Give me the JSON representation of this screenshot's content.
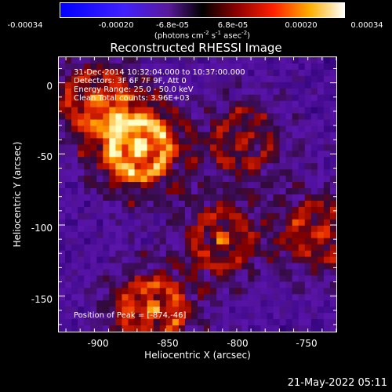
{
  "colorbar": {
    "ticks": [
      "-0.00034",
      "-0.00020",
      "-6.8e-05",
      "6.8e-05",
      "0.00020",
      "0.00034"
    ],
    "units_prefix": "(photons cm",
    "units_exp1": "-2",
    "units_mid1": " s",
    "units_exp2": "-1",
    "units_mid2": " asec",
    "units_exp3": "-2",
    "units_suffix": ")",
    "range": [
      -0.00034,
      0.00034
    ]
  },
  "title": "Reconstructed RHESSI Image",
  "info": {
    "time": "31-Dec-2014 10:32:04.000 to 10:37:00.000",
    "detectors": "Detectors: 3F 6F 7F 9F, Att 0",
    "energy": "Energy Range: 25.0 - 50.0 keV",
    "method": "Clean    Total counts: 3.96E+03",
    "peak": "Position of Peak = [-874,-46]"
  },
  "timestamp": "21-May-2022 05:11",
  "chart_data": {
    "type": "heatmap",
    "xlabel": "Heliocentric X (arcsec)",
    "ylabel": "Heliocentric Y (arcsec)",
    "xlim": [
      -930,
      -735
    ],
    "ylim": [
      -175,
      18
    ],
    "xticks": [
      -900,
      -850,
      -800,
      -750
    ],
    "yticks": [
      0,
      -50,
      -100,
      -150
    ],
    "sources": [
      {
        "x": -874,
        "y": -46,
        "intensity": 1.0
      },
      {
        "x": -865,
        "y": -160,
        "intensity": 0.75
      },
      {
        "x": -905,
        "y": -12,
        "intensity": 0.6
      },
      {
        "x": -815,
        "y": -110,
        "intensity": 0.55
      },
      {
        "x": -800,
        "y": -40,
        "intensity": 0.5
      },
      {
        "x": -745,
        "y": -105,
        "intensity": 0.6
      }
    ]
  }
}
